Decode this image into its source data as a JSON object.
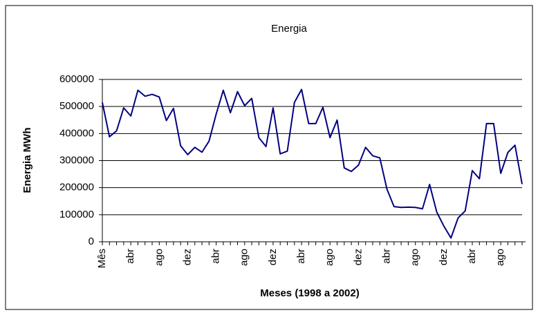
{
  "chart_data": {
    "type": "line",
    "title": "Energia",
    "x_label": "Meses (1998 a 2002)",
    "y_label": "Energia MWh",
    "categories": [
      "Mês",
      null,
      null,
      null,
      "abr",
      null,
      null,
      null,
      "ago",
      null,
      null,
      null,
      "dez",
      null,
      null,
      null,
      "abr",
      null,
      null,
      null,
      "ago",
      null,
      null,
      null,
      "dez",
      null,
      null,
      null,
      "abr",
      null,
      null,
      null,
      "ago",
      null,
      null,
      null,
      "dez",
      null,
      null,
      null,
      "abr",
      null,
      null,
      null,
      "ago",
      null,
      null,
      null,
      "dez",
      null,
      null,
      null,
      "abr",
      null,
      null,
      null,
      "ago",
      null,
      null,
      null
    ],
    "values": [
      515000,
      388000,
      410000,
      495000,
      465000,
      560000,
      538000,
      545000,
      535000,
      448000,
      493000,
      355000,
      322000,
      349000,
      331000,
      372000,
      472000,
      560000,
      477000,
      555000,
      503000,
      530000,
      385000,
      352000,
      495000,
      325000,
      335000,
      515000,
      563000,
      437000,
      437000,
      497000,
      385000,
      450000,
      273000,
      260000,
      283000,
      349000,
      318000,
      310000,
      195000,
      130000,
      127000,
      128000,
      127000,
      122000,
      212000,
      110000,
      58000,
      14000,
      88000,
      114000,
      263000,
      233000,
      437000,
      437000,
      253000,
      330000,
      357000,
      213000
    ],
    "color": "#000080",
    "ylim": [
      0,
      600000
    ],
    "yticks": [
      0,
      100000,
      200000,
      300000,
      400000,
      500000,
      600000
    ],
    "grid": true
  }
}
